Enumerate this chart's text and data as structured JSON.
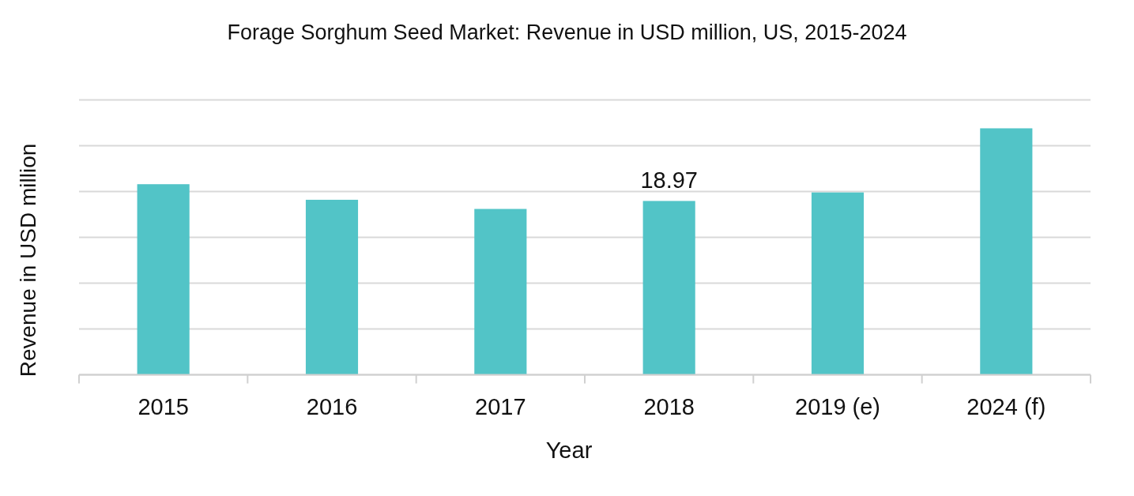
{
  "chart_data": {
    "type": "bar",
    "title": "Forage Sorghum Seed Market: Revenue in USD million, US, 2015-2024",
    "xlabel": "Year",
    "ylabel": "Revenue in USD million",
    "categories": [
      "2015",
      "2016",
      "2017",
      "2018",
      "2019 (e)",
      "2024 (f)"
    ],
    "values": [
      20.8,
      19.1,
      18.1,
      18.97,
      19.9,
      26.9
    ],
    "value_labels": [
      null,
      null,
      null,
      "18.97",
      null,
      null
    ],
    "color": "#52c4c7",
    "ylim": [
      0,
      30
    ],
    "yticks": [
      {
        "value": 0,
        "label": null
      },
      {
        "value": 5,
        "label": null
      },
      {
        "value": 10,
        "label": null
      },
      {
        "value": 15,
        "label": null
      },
      {
        "value": 20,
        "label": null
      },
      {
        "value": 25,
        "label": null
      },
      {
        "value": 30,
        "label": null
      }
    ],
    "grid": "y",
    "tick_labels": "x"
  }
}
